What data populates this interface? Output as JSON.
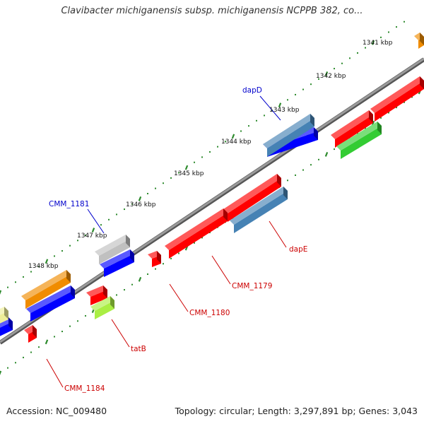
{
  "title": "Clavibacter michiganensis subsp. michiganensis NCPPB 382, co...",
  "footer": {
    "accession": "Accession: NC_009480",
    "summary": "Topology: circular; Length: 3,297,891 bp; Genes: 3,043"
  },
  "ticks": [
    "1341 kbp",
    "1342 kbp",
    "1343 kbp",
    "1344 kbp",
    "1345 kbp",
    "1346 kbp",
    "1347 kbp",
    "1348 kbp"
  ],
  "gene_labels": [
    {
      "text": "dapD",
      "color": "#0000cc"
    },
    {
      "text": "CMM_1181",
      "color": "#0000cc"
    },
    {
      "text": "dapE",
      "color": "#cc0000"
    },
    {
      "text": "CMM_1179",
      "color": "#cc0000"
    },
    {
      "text": "CMM_1180",
      "color": "#cc0000"
    },
    {
      "text": "tatB",
      "color": "#cc0000"
    },
    {
      "text": "CMM_1184",
      "color": "#cc0000"
    }
  ],
  "colors": {
    "backbone": "#7f7f7f",
    "dots": "#2e8b2e",
    "forward_cds": "#0000ff",
    "reverse_cds": "#ff0000",
    "steelblue": "#4682b4",
    "orange": "#f08c00",
    "grey": "#c0c0c0",
    "khaki": "#eeee99",
    "lightgreen": "#aaee44",
    "green": "#33cc33"
  }
}
